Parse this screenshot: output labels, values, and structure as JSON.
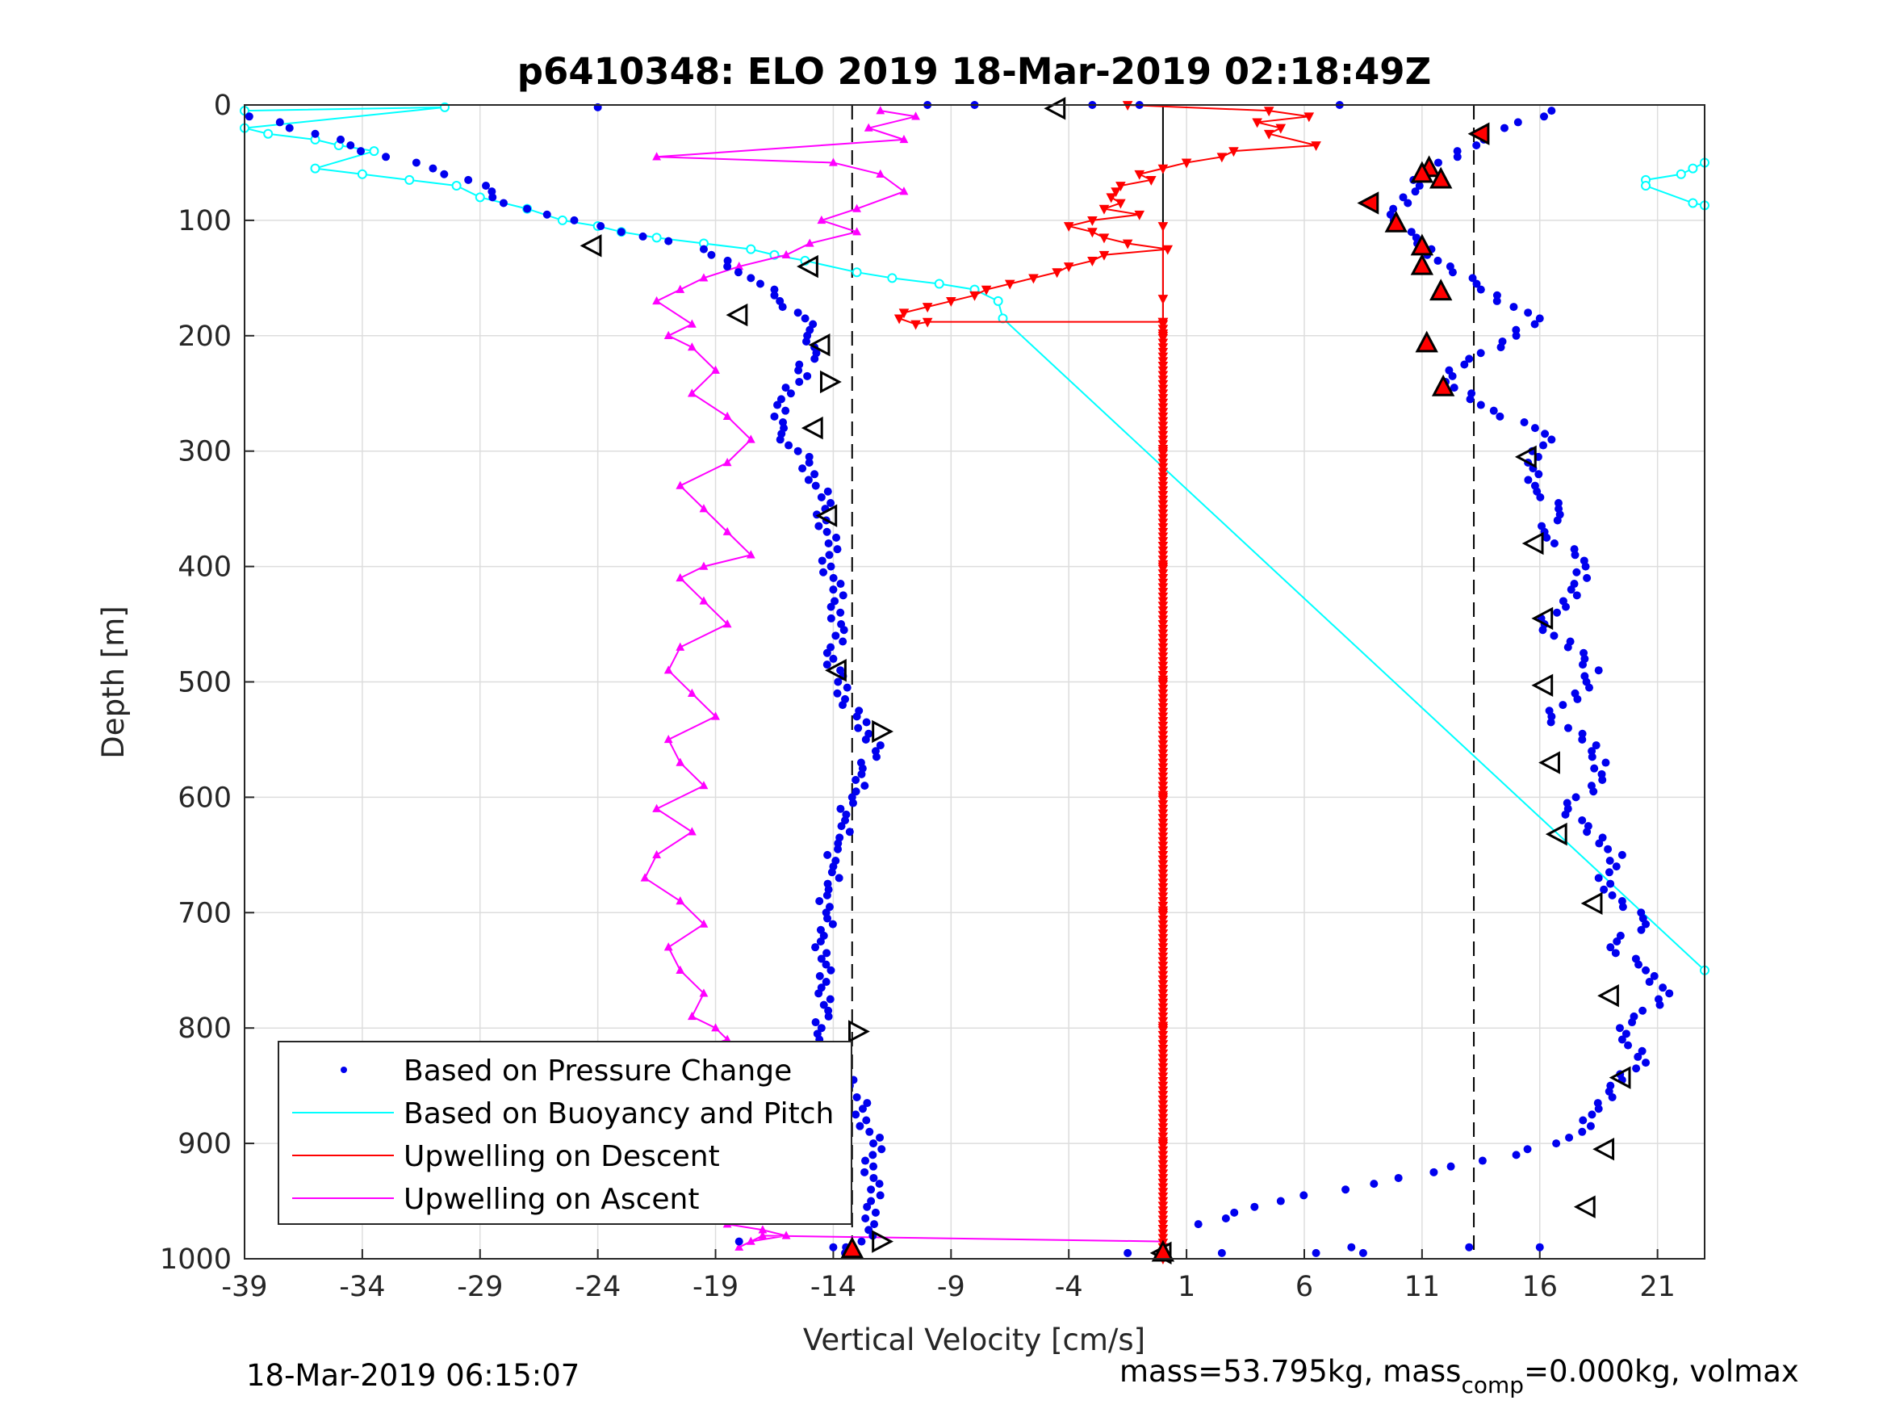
{
  "chart_data": {
    "type": "scatter",
    "title": "p6410348: ELO 2019 18-Mar-2019 02:18:49Z",
    "xlabel": "Vertical Velocity [cm/s]",
    "ylabel": "Depth [m]",
    "xlim": [
      -39,
      23
    ],
    "ylim": [
      0,
      1000
    ],
    "y_reversed": true,
    "grid": true,
    "x_ticks": [
      -39,
      -34,
      -29,
      -24,
      -19,
      -14,
      -9,
      -4,
      1,
      6,
      11,
      16,
      21
    ],
    "y_ticks": [
      0,
      100,
      200,
      300,
      400,
      500,
      600,
      700,
      800,
      900,
      1000
    ],
    "legend_position": "bottom-left",
    "reference_lines": [
      {
        "x": -13.2,
        "style": "dashed",
        "color": "#000000"
      },
      {
        "x": 0,
        "style": "solid",
        "color": "#000000"
      },
      {
        "x": 13.2,
        "style": "dashed",
        "color": "#000000"
      }
    ],
    "series": [
      {
        "name": "Based on Pressure Change",
        "marker": "dot",
        "color": "#0000ee",
        "descent": {
          "x": [
            -38.8,
            -37.5,
            -36,
            -34.5,
            -33,
            -31,
            -29.5,
            -28.5,
            -28,
            -27,
            -25,
            -23,
            -21,
            -19.5,
            -18.5,
            -17.5,
            -16.5,
            -15.5,
            -15,
            -14.8,
            -15.8,
            -16.5,
            -16.2,
            -15.5,
            -14.8,
            -14.5,
            -14.3,
            -14.2,
            -14.1,
            -14.0,
            -13.7,
            -13.9,
            -14.0,
            -13.8,
            -13.5,
            -13.0,
            -12.5,
            -12.2,
            -12.8,
            -13.2,
            -13.5,
            -13.8,
            -14.0,
            -14.2,
            -14.3,
            -14.4,
            -14.5,
            -14.3,
            -14.4,
            -14.5,
            -14.3,
            -14.0,
            -13.6,
            -13.3,
            -13.0,
            -12.6,
            -12.3,
            -12.3,
            -12.4,
            -12.2,
            -12.5,
            -12.8,
            -13.5
          ],
          "y": [
            10,
            15,
            25,
            35,
            45,
            55,
            65,
            75,
            85,
            90,
            100,
            110,
            118,
            125,
            140,
            150,
            165,
            180,
            195,
            210,
            250,
            270,
            285,
            300,
            320,
            340,
            360,
            380,
            400,
            420,
            440,
            460,
            480,
            500,
            515,
            530,
            545,
            560,
            580,
            600,
            620,
            640,
            660,
            680,
            700,
            720,
            740,
            760,
            780,
            800,
            815,
            830,
            840,
            850,
            860,
            880,
            900,
            920,
            940,
            960,
            975,
            985,
            995
          ]
        },
        "ascent": {
          "x": [
            16.5,
            14.5,
            12.5,
            11.2,
            10.2,
            9.8,
            10.8,
            12.2,
            13.5,
            15.5,
            16.0,
            15.0,
            13.0,
            12.0,
            13.5,
            15.8,
            16.5,
            15.5,
            15.8,
            16.8,
            16.2,
            17.5,
            18.0,
            17.0,
            16.2,
            17.2,
            18.5,
            17.5,
            16.5,
            17.8,
            18.8,
            18.2,
            17.2,
            18.0,
            19.5,
            18.5,
            19.5,
            20.5,
            19.0,
            20.5,
            21.5,
            20.0,
            19.5,
            20.5,
            19.0,
            18.5,
            17.8,
            15.0,
            10.0,
            5.0,
            1.5
          ],
          "y": [
            5,
            20,
            40,
            60,
            80,
            100,
            120,
            140,
            160,
            180,
            185,
            200,
            220,
            240,
            260,
            280,
            290,
            310,
            330,
            350,
            370,
            390,
            410,
            430,
            450,
            470,
            490,
            510,
            530,
            550,
            570,
            590,
            610,
            630,
            650,
            670,
            690,
            710,
            730,
            750,
            770,
            790,
            810,
            830,
            850,
            870,
            890,
            910,
            930,
            950,
            970
          ]
        },
        "surface": {
          "x": [
            -24,
            -10,
            -8,
            -3,
            -1,
            7.5,
            8,
            -18,
            -14,
            -1.5,
            2.5,
            6.5,
            8.5,
            13,
            16
          ],
          "y": [
            2,
            0,
            0,
            0,
            0,
            0,
            990,
            985,
            990,
            995,
            995,
            995,
            995,
            990,
            990
          ]
        }
      },
      {
        "name": "Based on Buoyancy and Pitch",
        "marker": "open-circle-line",
        "color": "#00ffff",
        "x": [
          -39,
          -30.5,
          -39,
          -38,
          -36,
          -35,
          -33.5,
          -36,
          -34,
          -32,
          -30,
          -29,
          -27,
          -25.5,
          -24,
          -23,
          -21.5,
          -19.5,
          -17.5,
          -16.5,
          -15.2,
          -13,
          -11.5,
          -9.5,
          -8,
          -7,
          -6.8,
          23.0,
          23.0,
          22.5,
          22.0,
          20.5,
          20.5,
          22.5,
          23.0
        ],
        "y": [
          5,
          2,
          20,
          25,
          30,
          35,
          40,
          55,
          60,
          65,
          70,
          80,
          90,
          100,
          105,
          110,
          115,
          120,
          125,
          130,
          135,
          145,
          150,
          155,
          160,
          170,
          185,
          750,
          50,
          55,
          60,
          65,
          70,
          85,
          87
        ]
      },
      {
        "name": "Upwelling on Descent",
        "marker": "down-triangle-line",
        "color": "#ff0000",
        "x": [
          -1.5,
          4.5,
          6.2,
          4.0,
          5.0,
          4.5,
          6.5,
          3.0,
          2.5,
          1.0,
          0.0,
          -1.0,
          -0.5,
          -1.8,
          -2.0,
          -2.2,
          -1.8,
          -2.5,
          -1.0,
          -3.0,
          -4.0,
          -3.0,
          -2.5,
          -1.5,
          0.2,
          -2.5,
          -3.0,
          -4.0,
          -4.5,
          -5.5,
          -6.5,
          -7.5,
          -8.0,
          -9.0,
          -10.0,
          -11.0,
          -11.2,
          -10.5,
          -10.0,
          0.0,
          0.0,
          0.0,
          0.0,
          0.0,
          0.0,
          0.0,
          0.0,
          0.0,
          0.0,
          0.0,
          0.0,
          0.0
        ],
        "y": [
          0,
          5,
          10,
          15,
          20,
          25,
          35,
          40,
          45,
          50,
          55,
          60,
          65,
          70,
          75,
          80,
          85,
          90,
          95,
          100,
          105,
          110,
          115,
          120,
          125,
          130,
          135,
          140,
          145,
          150,
          155,
          160,
          165,
          170,
          175,
          180,
          185,
          190,
          188,
          188,
          200,
          300,
          400,
          500,
          600,
          700,
          800,
          900,
          1000,
          188,
          168,
          105
        ]
      },
      {
        "name": "Upwelling on Ascent",
        "marker": "up-triangle-line",
        "color": "#ff00ff",
        "x": [
          -12.0,
          -10.5,
          -12.5,
          -11.0,
          -21.5,
          -14.0,
          -12.0,
          -11.0,
          -13.0,
          -14.5,
          -13.0,
          -15.0,
          -16.0,
          -18.0,
          -19.5,
          -20.5,
          -21.5,
          -20.0,
          -21.0,
          -20.0,
          -19.0,
          -20.0,
          -18.5,
          -17.5,
          -18.5,
          -20.5,
          -19.5,
          -18.5,
          -17.5,
          -19.5,
          -20.5,
          -19.5,
          -18.5,
          -20.5,
          -21.0,
          -20.0,
          -19.0,
          -21.0,
          -20.5,
          -19.5,
          -21.5,
          -20.0,
          -21.5,
          -22.0,
          -20.5,
          -19.5,
          -21.0,
          -20.5,
          -19.5,
          -20.0,
          -19.0,
          -18.5,
          -20.0,
          -19.5,
          -18.5,
          -20.0,
          -19.5,
          -18.0,
          -17.5,
          -19.0,
          -20.0,
          -18.5,
          -17.0,
          -18.5,
          -19.5,
          -18.0,
          -17.0,
          -18.5,
          -17.0,
          -16.0,
          -17.5,
          -18.0,
          -17.0,
          0.0
        ],
        "y": [
          5,
          10,
          20,
          30,
          45,
          50,
          60,
          75,
          90,
          100,
          110,
          120,
          130,
          140,
          150,
          160,
          170,
          190,
          200,
          210,
          230,
          250,
          270,
          290,
          310,
          330,
          350,
          370,
          390,
          400,
          410,
          430,
          450,
          470,
          490,
          510,
          530,
          550,
          570,
          590,
          610,
          630,
          650,
          670,
          690,
          710,
          730,
          750,
          770,
          790,
          800,
          810,
          820,
          830,
          840,
          850,
          860,
          870,
          880,
          890,
          900,
          910,
          920,
          930,
          940,
          950,
          960,
          970,
          975,
          980,
          985,
          990,
          980,
          985
        ]
      }
    ],
    "annotations": {
      "open_triangles": [
        {
          "x": -4.5,
          "y": 3,
          "dir": "left"
        },
        {
          "x": -24.2,
          "y": 122,
          "dir": "left"
        },
        {
          "x": -15.0,
          "y": 140,
          "dir": "left"
        },
        {
          "x": -18.0,
          "y": 182,
          "dir": "left"
        },
        {
          "x": -14.5,
          "y": 208,
          "dir": "left"
        },
        {
          "x": -14.2,
          "y": 240,
          "dir": "right"
        },
        {
          "x": -14.8,
          "y": 280,
          "dir": "left"
        },
        {
          "x": -14.2,
          "y": 356,
          "dir": "left"
        },
        {
          "x": -13.8,
          "y": 490,
          "dir": "left"
        },
        {
          "x": -12.0,
          "y": 543,
          "dir": "right"
        },
        {
          "x": -13.0,
          "y": 803,
          "dir": "right"
        },
        {
          "x": -12.0,
          "y": 985,
          "dir": "right"
        },
        {
          "x": 15.5,
          "y": 305,
          "dir": "left"
        },
        {
          "x": 15.8,
          "y": 380,
          "dir": "left"
        },
        {
          "x": 16.2,
          "y": 445,
          "dir": "left"
        },
        {
          "x": 16.2,
          "y": 503,
          "dir": "left"
        },
        {
          "x": 16.5,
          "y": 570,
          "dir": "left"
        },
        {
          "x": 16.8,
          "y": 632,
          "dir": "left"
        },
        {
          "x": 18.3,
          "y": 692,
          "dir": "left"
        },
        {
          "x": 19.0,
          "y": 772,
          "dir": "left"
        },
        {
          "x": 19.5,
          "y": 843,
          "dir": "left"
        },
        {
          "x": 18.8,
          "y": 905,
          "dir": "left"
        },
        {
          "x": 18.0,
          "y": 955,
          "dir": "left"
        },
        {
          "x": 0.0,
          "y": 995,
          "dir": "left"
        }
      ],
      "filled_triangles": [
        {
          "x": 13.5,
          "y": 25,
          "dir": "left"
        },
        {
          "x": 11.3,
          "y": 55,
          "dir": "up"
        },
        {
          "x": 11.8,
          "y": 65,
          "dir": "up"
        },
        {
          "x": 11.0,
          "y": 60,
          "dir": "up"
        },
        {
          "x": 8.8,
          "y": 85,
          "dir": "left"
        },
        {
          "x": 9.9,
          "y": 103,
          "dir": "up"
        },
        {
          "x": 11.0,
          "y": 123,
          "dir": "up"
        },
        {
          "x": 11.0,
          "y": 140,
          "dir": "up"
        },
        {
          "x": 11.8,
          "y": 162,
          "dir": "up"
        },
        {
          "x": 11.2,
          "y": 207,
          "dir": "up"
        },
        {
          "x": 11.9,
          "y": 245,
          "dir": "up"
        },
        {
          "x": -13.2,
          "y": 992,
          "dir": "up"
        },
        {
          "x": 0.0,
          "y": 995,
          "dir": "up"
        }
      ]
    }
  },
  "labels": {
    "title": "p6410348: ELO 2019 18-Mar-2019 02:18:49Z",
    "xlabel": "Vertical Velocity [cm/s]",
    "ylabel": "Depth [m]",
    "legend": [
      "Based on Pressure Change",
      "Based on Buoyancy and Pitch",
      "Upwelling on Descent",
      "Upwelling on Ascent"
    ],
    "footer_left": "18-Mar-2019 06:15:07",
    "footer_right_a": "mass=53.795kg, mass",
    "footer_right_sub": "comp",
    "footer_right_b": "=0.000kg, volmax"
  },
  "colors": {
    "pressure": "#0000ee",
    "buoyancy": "#00ffff",
    "descent": "#ff0000",
    "ascent": "#ff00ff",
    "grid": "#dddddd"
  }
}
